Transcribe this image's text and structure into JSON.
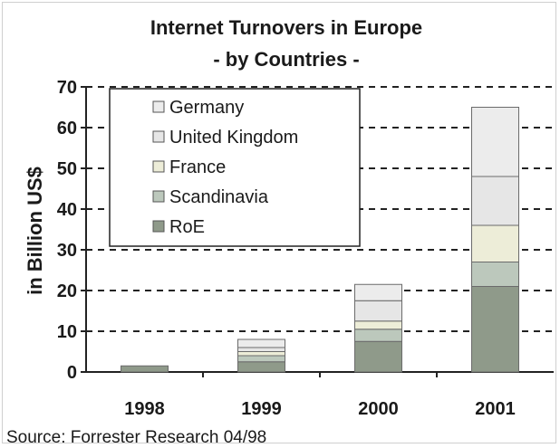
{
  "chart_data": {
    "type": "bar",
    "stacked": true,
    "title": "Internet Turnovers in Europe",
    "subtitle": "- by Countries -",
    "xlabel": "",
    "ylabel": "in Billion US$",
    "ylim": [
      0,
      70
    ],
    "yticks": [
      "0",
      "10",
      "20",
      "30",
      "40",
      "50",
      "60",
      "70"
    ],
    "categories": [
      "1998",
      "1999",
      "2000",
      "2001"
    ],
    "grid": "horizontal dashed",
    "legend_position": "top-left",
    "series": [
      {
        "name": "RoE",
        "values": [
          1.5,
          2.5,
          7.5,
          21
        ],
        "color": "#8f9a8a"
      },
      {
        "name": "Scandinavia",
        "values": [
          0.0,
          1.5,
          3,
          6
        ],
        "color": "#bcc8bc"
      },
      {
        "name": "France",
        "values": [
          0.0,
          1.0,
          2,
          9
        ],
        "color": "#ededd8"
      },
      {
        "name": "United Kingdom",
        "values": [
          0.0,
          1.0,
          5,
          12
        ],
        "color": "#e6e6e6"
      },
      {
        "name": "Germany",
        "values": [
          0.0,
          2.0,
          4,
          17
        ],
        "color": "#ececec"
      }
    ],
    "legend_order": [
      "Germany",
      "United Kingdom",
      "France",
      "Scandinavia",
      "RoE"
    ]
  },
  "source_note": "Source: Forrester Research 04/98"
}
